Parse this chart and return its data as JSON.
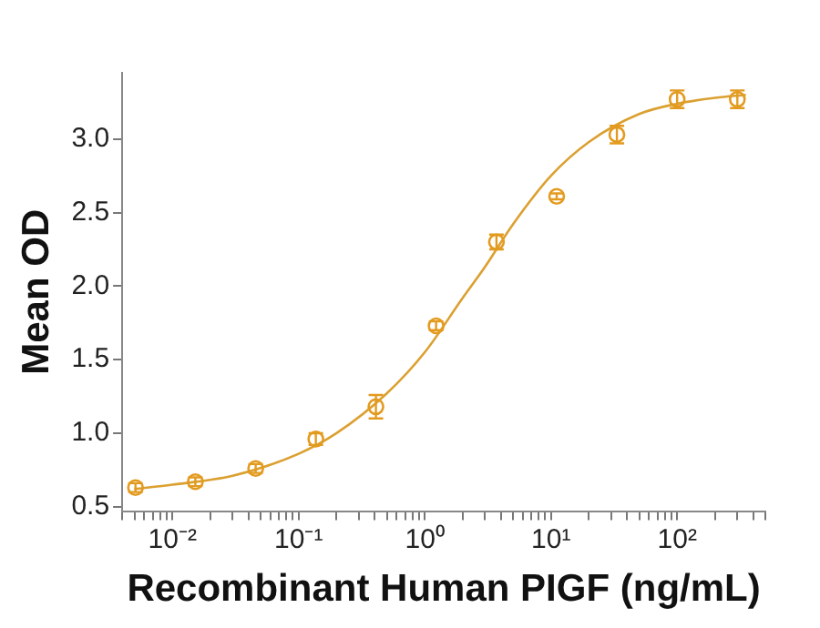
{
  "chart_data": {
    "type": "scatter",
    "xlabel": "Recombinant Human PIGF (ng/mL)",
    "ylabel": "Mean OD",
    "log": "x",
    "grid": false,
    "legend": false,
    "marker": "circle",
    "xlim": [
      0.004,
      500
    ],
    "ylim": [
      0.47,
      3.45
    ],
    "xticks": [
      {
        "value": 0.004,
        "label": null
      },
      {
        "value": 0.005,
        "label": null
      },
      {
        "value": 0.006,
        "label": null
      },
      {
        "value": 0.007,
        "label": null
      },
      {
        "value": 0.008,
        "label": null
      },
      {
        "value": 0.009,
        "label": null
      },
      {
        "value": 0.01,
        "label": "10⁻²"
      },
      {
        "value": 0.02,
        "label": null
      },
      {
        "value": 0.03,
        "label": null
      },
      {
        "value": 0.04,
        "label": null
      },
      {
        "value": 0.05,
        "label": null
      },
      {
        "value": 0.06,
        "label": null
      },
      {
        "value": 0.07,
        "label": null
      },
      {
        "value": 0.08,
        "label": null
      },
      {
        "value": 0.09,
        "label": null
      },
      {
        "value": 0.1,
        "label": "10⁻¹"
      },
      {
        "value": 0.2,
        "label": null
      },
      {
        "value": 0.3,
        "label": null
      },
      {
        "value": 0.4,
        "label": null
      },
      {
        "value": 0.5,
        "label": null
      },
      {
        "value": 0.6,
        "label": null
      },
      {
        "value": 0.7,
        "label": null
      },
      {
        "value": 0.8,
        "label": null
      },
      {
        "value": 0.9,
        "label": null
      },
      {
        "value": 1,
        "label": "10⁰"
      },
      {
        "value": 2,
        "label": null
      },
      {
        "value": 3,
        "label": null
      },
      {
        "value": 4,
        "label": null
      },
      {
        "value": 5,
        "label": null
      },
      {
        "value": 6,
        "label": null
      },
      {
        "value": 7,
        "label": null
      },
      {
        "value": 8,
        "label": null
      },
      {
        "value": 9,
        "label": null
      },
      {
        "value": 10,
        "label": "10¹"
      },
      {
        "value": 20,
        "label": null
      },
      {
        "value": 30,
        "label": null
      },
      {
        "value": 40,
        "label": null
      },
      {
        "value": 50,
        "label": null
      },
      {
        "value": 60,
        "label": null
      },
      {
        "value": 70,
        "label": null
      },
      {
        "value": 80,
        "label": null
      },
      {
        "value": 90,
        "label": null
      },
      {
        "value": 100,
        "label": "10²"
      },
      {
        "value": 200,
        "label": null
      },
      {
        "value": 300,
        "label": null
      },
      {
        "value": 400,
        "label": null
      },
      {
        "value": 500,
        "label": null
      }
    ],
    "yticks": [
      {
        "value": 0.5,
        "label": "0.5"
      },
      {
        "value": 1,
        "label": "1.0"
      },
      {
        "value": 1.5,
        "label": "1.5"
      },
      {
        "value": 2,
        "label": "2.0"
      },
      {
        "value": 2.5,
        "label": "2.5"
      },
      {
        "value": 3,
        "label": "3.0"
      }
    ],
    "series": [
      {
        "color": "#e39b1f",
        "x": [
          0.0051,
          0.0152,
          0.0457,
          0.137,
          0.41,
          1.23,
          3.7,
          11.1,
          33.3,
          100,
          300
        ],
        "values": [
          0.63,
          0.67,
          0.76,
          0.96,
          1.18,
          1.73,
          2.3,
          2.61,
          3.03,
          3.27,
          3.27
        ],
        "errors": [
          0.03,
          0.03,
          0.03,
          0.04,
          0.08,
          0.03,
          0.05,
          0.02,
          0.06,
          0.06,
          0.06
        ]
      },
      {
        "type": "line",
        "color": "#dba030",
        "marker": "none",
        "x": [
          0.005,
          0.01,
          0.03,
          0.1,
          0.2,
          0.5,
          1,
          2,
          3,
          5,
          10,
          20,
          50,
          100,
          200,
          350
        ],
        "values": [
          0.62,
          0.65,
          0.71,
          0.86,
          1.0,
          1.27,
          1.55,
          1.92,
          2.13,
          2.42,
          2.75,
          2.98,
          3.17,
          3.24,
          3.28,
          3.3
        ]
      }
    ]
  }
}
